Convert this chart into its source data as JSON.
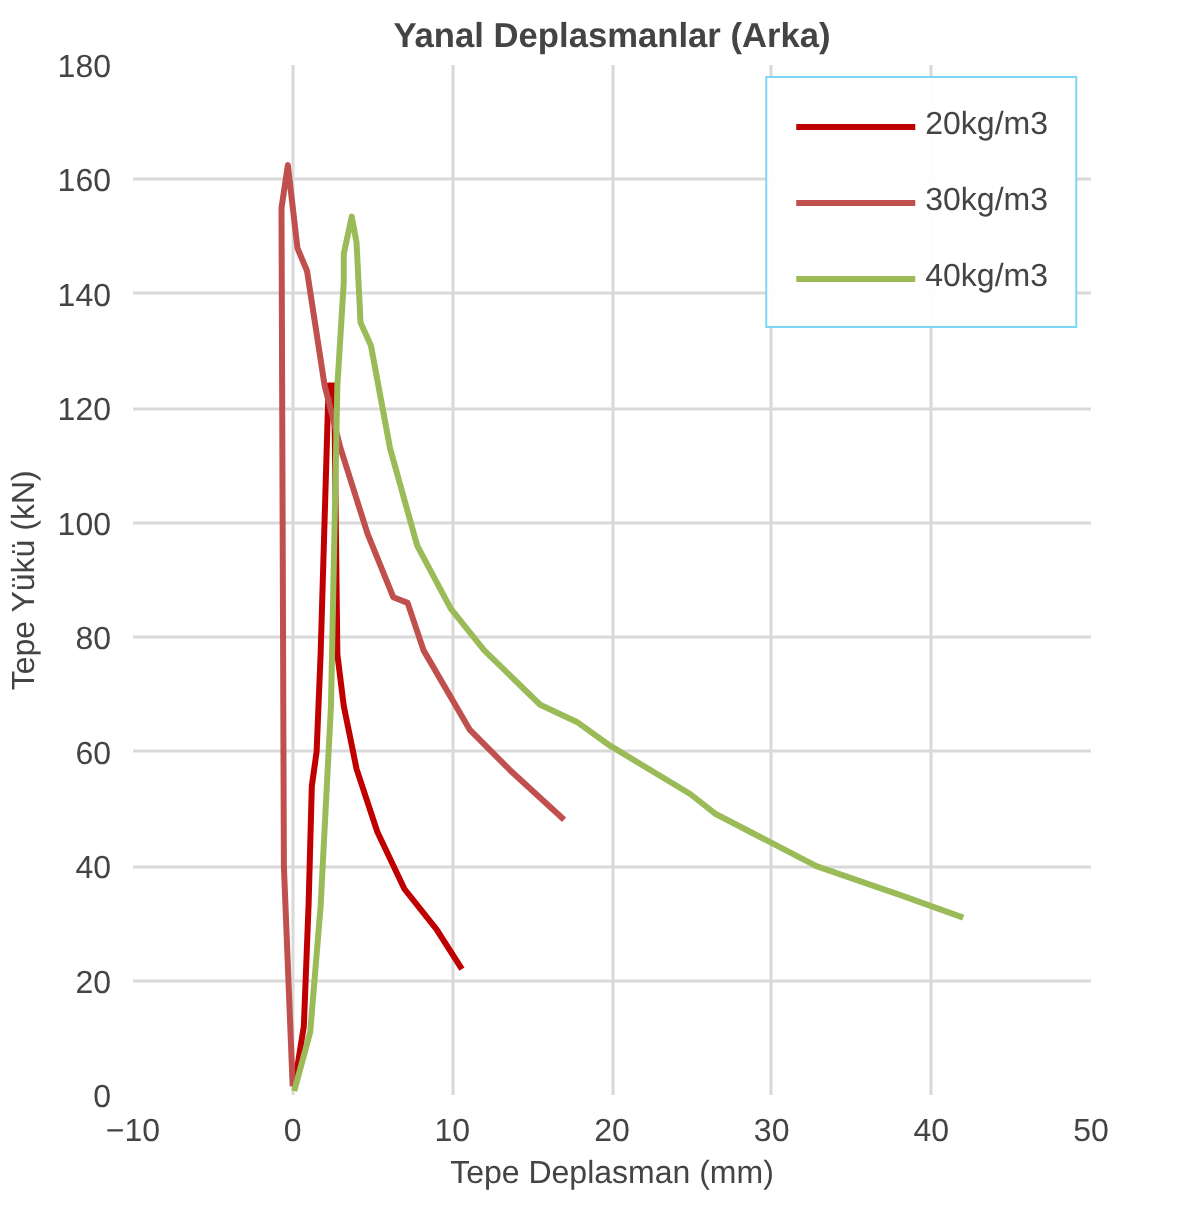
{
  "chart_data": {
    "type": "line",
    "title": "Yanal Deplasmanlar (Arka)",
    "xlabel": "Tepe Deplasman (mm)",
    "ylabel": "Tepe Yükü (kN)",
    "xlim": [
      -10,
      50
    ],
    "xticks": [
      -10,
      0,
      10,
      20,
      30,
      40,
      50
    ],
    "ylim": [
      0,
      180
    ],
    "yticks": [
      0,
      20,
      40,
      60,
      80,
      100,
      120,
      140,
      160,
      180
    ],
    "grid": true,
    "legend": "top right",
    "marker": "none",
    "line_style": "solid",
    "series": [
      {
        "name": "20kg/m3",
        "color": "#c00000",
        "x": [
          0.1,
          0.7,
          1.0,
          1.2,
          1.5,
          1.75,
          2.25,
          2.6,
          2.8,
          3.2,
          4,
          5.3,
          7,
          9,
          10.6
        ],
        "values": [
          1.5,
          12,
          33.5,
          54,
          60,
          77,
          124,
          124,
          77,
          68,
          57,
          46,
          36,
          29,
          22
        ]
      },
      {
        "name": "30kg/m3",
        "color": "#c0504d",
        "x": [
          0,
          -0.55,
          -0.7,
          -0.3,
          0.3,
          0.9,
          2,
          3,
          4.7,
          6.3,
          7.2,
          8.2,
          11.1,
          13.6,
          17
        ],
        "values": [
          1.5,
          40,
          155,
          162.5,
          148,
          144,
          124,
          113,
          98,
          87,
          86,
          77.7,
          63.8,
          56.8,
          48.1
        ]
      },
      {
        "name": "40kg/m3",
        "color": "#9bbb59",
        "x": [
          0.1,
          1.1,
          1.75,
          2.4,
          2.8,
          3.2,
          3.2,
          3.7,
          4,
          4.25,
          4.9,
          6.1,
          7.8,
          9.9,
          12,
          15.5,
          17.8,
          19.9,
          24.9,
          26.5,
          32.8,
          38.2,
          42
        ],
        "values": [
          0.7,
          11,
          33,
          68,
          124,
          142,
          147,
          153.5,
          149,
          135,
          131,
          113,
          96,
          85,
          77.7,
          68.2,
          65.2,
          61,
          52.6,
          49.1,
          40,
          34.8,
          31
        ]
      }
    ]
  }
}
